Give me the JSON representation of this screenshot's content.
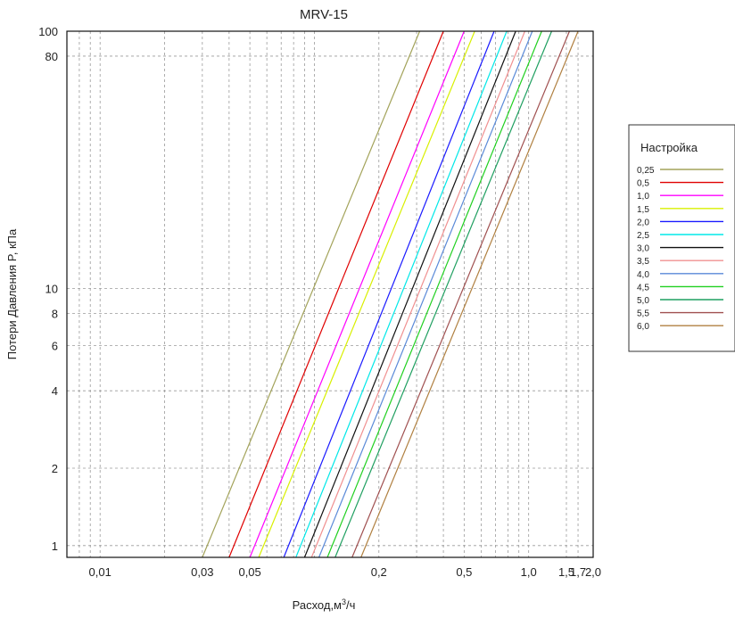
{
  "chart_data": {
    "type": "line",
    "title": "MRV-15",
    "xlabel": "Расход,м³/ч",
    "xlabel_base": "Расход,м",
    "xlabel_sup": "3",
    "xlabel_tail": "/ч",
    "ylabel": "Потери Давления P, кПа",
    "x_scale": "log",
    "y_scale": "log",
    "xlim": [
      0.007,
      2.0
    ],
    "ylim": [
      0.9,
      100
    ],
    "grid": true,
    "x_ticks": [
      {
        "value": 0.01,
        "label": "0,01"
      },
      {
        "value": 0.03,
        "label": "0,03"
      },
      {
        "value": 0.05,
        "label": "0,05"
      },
      {
        "value": 0.2,
        "label": "0,2"
      },
      {
        "value": 0.5,
        "label": "0,5"
      },
      {
        "value": 1.0,
        "label": "1,0"
      },
      {
        "value": 1.5,
        "label": "1,5"
      },
      {
        "value": 1.7,
        "label": "1,7"
      },
      {
        "value": 2.0,
        "label": "2,0"
      }
    ],
    "y_ticks": [
      {
        "value": 1,
        "label": "1"
      },
      {
        "value": 2,
        "label": "2"
      },
      {
        "value": 4,
        "label": "4"
      },
      {
        "value": 6,
        "label": "6"
      },
      {
        "value": 8,
        "label": "8"
      },
      {
        "value": 10,
        "label": "10"
      },
      {
        "value": 80,
        "label": "80"
      },
      {
        "value": 100,
        "label": "100"
      }
    ],
    "legend": {
      "title": "Настройка",
      "position": "right"
    },
    "series": [
      {
        "name": "0,25",
        "color": "#a3a35a",
        "x": [
          0.03,
          0.31
        ],
        "y": [
          0.9,
          100
        ]
      },
      {
        "name": "0,5",
        "color": "#e00000",
        "x": [
          0.04,
          0.4
        ],
        "y": [
          0.9,
          100
        ]
      },
      {
        "name": "1,0",
        "color": "#ff00ff",
        "x": [
          0.05,
          0.5
        ],
        "y": [
          0.9,
          100
        ]
      },
      {
        "name": "1,5",
        "color": "#d8f000",
        "x": [
          0.055,
          0.56
        ],
        "y": [
          0.9,
          100
        ]
      },
      {
        "name": "2,0",
        "color": "#1a1aff",
        "x": [
          0.072,
          0.69
        ],
        "y": [
          0.9,
          100
        ]
      },
      {
        "name": "2,5",
        "color": "#00e8e8",
        "x": [
          0.082,
          0.79
        ],
        "y": [
          0.9,
          100
        ]
      },
      {
        "name": "3,0",
        "color": "#111111",
        "x": [
          0.09,
          0.87
        ],
        "y": [
          0.9,
          100
        ]
      },
      {
        "name": "3,5",
        "color": "#f09090",
        "x": [
          0.097,
          0.96
        ],
        "y": [
          0.9,
          100
        ]
      },
      {
        "name": "4,0",
        "color": "#5a8ad8",
        "x": [
          0.105,
          1.04
        ],
        "y": [
          0.9,
          100
        ]
      },
      {
        "name": "4,5",
        "color": "#20d020",
        "x": [
          0.115,
          1.15
        ],
        "y": [
          0.9,
          100
        ]
      },
      {
        "name": "5,0",
        "color": "#1f9f60",
        "x": [
          0.125,
          1.28
        ],
        "y": [
          0.9,
          100
        ]
      },
      {
        "name": "5,5",
        "color": "#a05050",
        "x": [
          0.15,
          1.55
        ],
        "y": [
          0.9,
          100
        ]
      },
      {
        "name": "6,0",
        "color": "#b08040",
        "x": [
          0.165,
          1.7
        ],
        "y": [
          0.9,
          100
        ]
      }
    ]
  }
}
